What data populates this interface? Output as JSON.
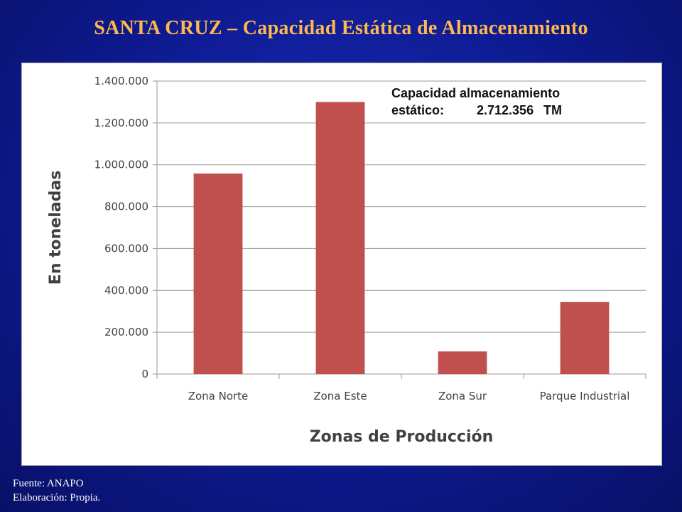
{
  "slide": {
    "title": "SANTA CRUZ – Capacidad Estática de Almacenamiento"
  },
  "annotation": {
    "line1": "Capacidad almacenamiento",
    "label": "estático:",
    "value": "2.712.356",
    "unit": "TM"
  },
  "footer": {
    "source": "Fuente: ANAPO",
    "credit": "Elaboración: Propia."
  },
  "colors": {
    "bar": "#c0504d",
    "title": "#ffb84d",
    "background": "#0d1a8f"
  },
  "chart_data": {
    "type": "bar",
    "categories": [
      "Zona Norte",
      "Zona Este",
      "Zona Sur",
      "Parque Industrial"
    ],
    "values": [
      958000,
      1300000,
      108000,
      344000
    ],
    "ylabel": "En toneladas",
    "xlabel": "Zonas de Producción",
    "ylim": [
      0,
      1400000
    ],
    "yticks": [
      0,
      200000,
      400000,
      600000,
      800000,
      1000000,
      1200000,
      1400000
    ],
    "ytick_labels": [
      "0",
      "200.000",
      "400.000",
      "600.000",
      "800.000",
      "1.000.000",
      "1.200.000",
      "1.400.000"
    ],
    "grid": true,
    "legend": "none"
  }
}
